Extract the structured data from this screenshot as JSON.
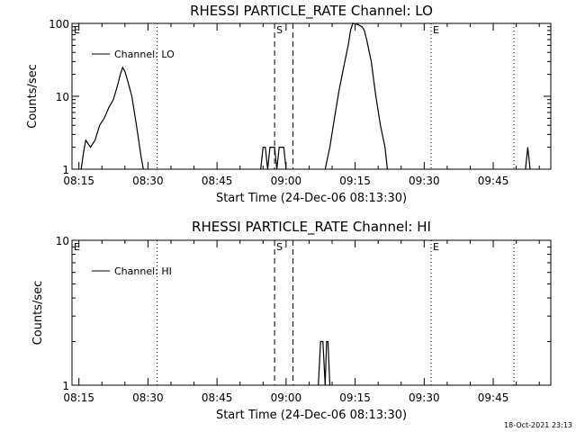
{
  "x_tick_labels": [
    "08:15",
    "08:30",
    "08:45",
    "09:00",
    "09:15",
    "09:30",
    "09:45"
  ],
  "footer_timestamp": "18-Oct-2021 23:13",
  "chart_data": [
    {
      "type": "line",
      "title": "RHESSI PARTICLE_RATE Channel: LO",
      "xlabel": "Start Time (24-Dec-06 08:13:30)",
      "ylabel": "Counts/sec",
      "yscale": "log",
      "ylim": [
        1,
        100
      ],
      "xlim_minutes_after_start": [
        0,
        104
      ],
      "y_tick_labels": [
        "1",
        "10",
        "100"
      ],
      "legend": {
        "placement": "top-left",
        "label": "Channel: LO"
      },
      "markers": [
        {
          "label": "E",
          "t": 0,
          "style": "dotted"
        },
        {
          "label": "",
          "t": 18.5,
          "style": "dotted"
        },
        {
          "label": "S",
          "t": 44,
          "style": "dashed"
        },
        {
          "label": "",
          "t": 48,
          "style": "dashed"
        },
        {
          "label": "E",
          "t": 78,
          "style": "dotted"
        },
        {
          "label": "",
          "t": 96,
          "style": "dotted"
        }
      ],
      "series": [
        {
          "name": "Channel: LO",
          "segments": [
            [
              [
                2,
                1
              ],
              [
                2.5,
                1.7
              ],
              [
                3,
                2.5
              ],
              [
                4,
                2
              ],
              [
                5,
                2.5
              ],
              [
                6,
                4
              ],
              [
                7,
                5
              ],
              [
                8,
                7
              ],
              [
                9,
                9
              ],
              [
                10,
                15
              ],
              [
                10.5,
                20
              ],
              [
                11,
                25
              ],
              [
                11.5,
                22
              ],
              [
                12,
                17
              ],
              [
                13,
                10
              ],
              [
                14,
                4
              ],
              [
                15,
                1.5
              ],
              [
                15.5,
                1
              ]
            ],
            [
              [
                41,
                1
              ],
              [
                41.5,
                2
              ],
              [
                42,
                2
              ],
              [
                42.5,
                1
              ],
              [
                43,
                2
              ],
              [
                44,
                2
              ],
              [
                44.5,
                1
              ],
              [
                45,
                2
              ],
              [
                46,
                2
              ],
              [
                46.5,
                1
              ]
            ],
            [
              [
                55,
                1
              ],
              [
                56,
                2
              ],
              [
                57,
                5
              ],
              [
                58,
                12
              ],
              [
                59,
                25
              ],
              [
                60,
                50
              ],
              [
                60.5,
                80
              ],
              [
                61,
                100
              ],
              [
                62,
                97
              ],
              [
                63,
                90
              ],
              [
                63.5,
                80
              ],
              [
                64,
                60
              ],
              [
                65,
                30
              ],
              [
                66,
                10
              ],
              [
                67,
                4
              ],
              [
                68,
                2
              ],
              [
                68.5,
                1
              ]
            ],
            [
              [
                98.5,
                1
              ],
              [
                99,
                2
              ],
              [
                99.5,
                1
              ]
            ]
          ]
        }
      ]
    },
    {
      "type": "line",
      "title": "RHESSI PARTICLE_RATE Channel: HI",
      "xlabel": "Start Time (24-Dec-06 08:13:30)",
      "ylabel": "Counts/sec",
      "yscale": "log",
      "ylim": [
        1,
        10
      ],
      "xlim_minutes_after_start": [
        0,
        104
      ],
      "y_tick_labels": [
        "1",
        "10"
      ],
      "legend": {
        "placement": "top-left",
        "label": "Channel: HI"
      },
      "markers": [
        {
          "label": "E",
          "t": 0,
          "style": "dotted"
        },
        {
          "label": "",
          "t": 18.5,
          "style": "dotted"
        },
        {
          "label": "S",
          "t": 44,
          "style": "dashed"
        },
        {
          "label": "",
          "t": 48,
          "style": "dashed"
        },
        {
          "label": "E",
          "t": 78,
          "style": "dotted"
        },
        {
          "label": "",
          "t": 96,
          "style": "dotted"
        }
      ],
      "series": [
        {
          "name": "Channel: HI",
          "segments": [
            [
              [
                53.5,
                1
              ],
              [
                54,
                2
              ],
              [
                54.5,
                2
              ],
              [
                55,
                1
              ],
              [
                55.3,
                2
              ],
              [
                55.6,
                2
              ],
              [
                56,
                1
              ]
            ]
          ]
        }
      ]
    }
  ]
}
